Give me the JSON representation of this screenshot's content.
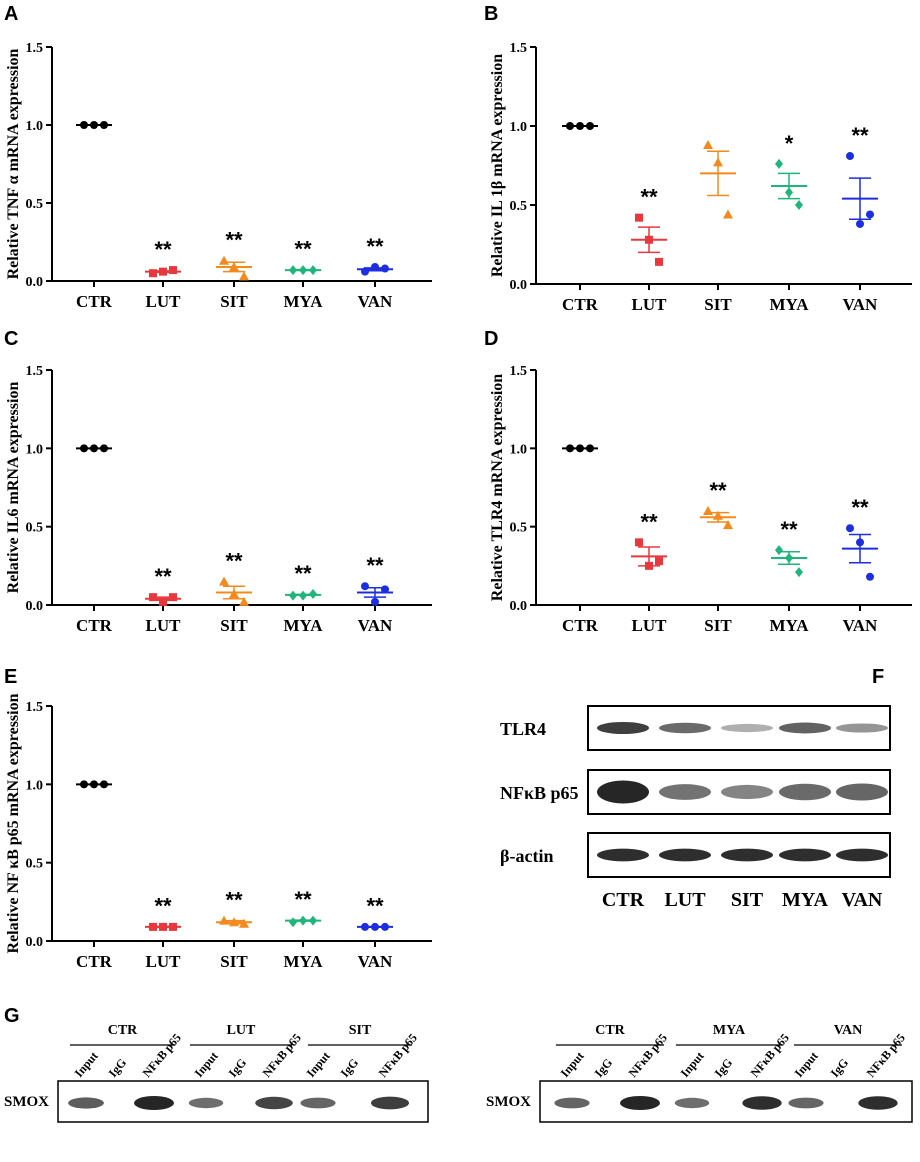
{
  "figure": {
    "panel_letters": [
      "A",
      "B",
      "C",
      "D",
      "E",
      "F",
      "G"
    ]
  },
  "chart_data": [
    {
      "panel": "A",
      "type": "scatter",
      "ylabel": "Relative TNF α mRNA expression",
      "categories": [
        "CTR",
        "LUT",
        "SIT",
        "MYA",
        "VAN"
      ],
      "yticks": [
        "0.0",
        "0.5",
        "1.0",
        "1.5"
      ],
      "ylim": [
        0,
        1.5
      ],
      "series": [
        {
          "name": "CTR",
          "color": "#000000",
          "marker": "circle",
          "points": [
            1.0,
            1.0,
            1.0
          ],
          "mean": 1.0,
          "sem": 0,
          "sig": ""
        },
        {
          "name": "LUT",
          "color": "#e8383d",
          "marker": "square",
          "points": [
            0.05,
            0.06,
            0.07
          ],
          "mean": 0.06,
          "sem": 0.005,
          "sig": "**"
        },
        {
          "name": "SIT",
          "color": "#f28a1e",
          "marker": "triangle",
          "points": [
            0.13,
            0.09,
            0.03
          ],
          "mean": 0.09,
          "sem": 0.03,
          "sig": "**"
        },
        {
          "name": "MYA",
          "color": "#1fb57b",
          "marker": "diamond",
          "points": [
            0.07,
            0.07,
            0.07
          ],
          "mean": 0.07,
          "sem": 0.003,
          "sig": "**"
        },
        {
          "name": "VAN",
          "color": "#1c2ee0",
          "marker": "circle",
          "points": [
            0.06,
            0.09,
            0.08
          ],
          "mean": 0.075,
          "sem": 0.009,
          "sig": "**"
        }
      ]
    },
    {
      "panel": "B",
      "type": "scatter",
      "ylabel": "Relative IL 1β mRNA expression",
      "categories": [
        "CTR",
        "LUT",
        "SIT",
        "MYA",
        "VAN"
      ],
      "yticks": [
        "0.0",
        "0.5",
        "1.0",
        "1.5"
      ],
      "ylim": [
        0,
        1.5
      ],
      "series": [
        {
          "name": "CTR",
          "color": "#000000",
          "marker": "circle",
          "points": [
            1.0,
            1.0,
            1.0
          ],
          "mean": 1.0,
          "sem": 0,
          "sig": ""
        },
        {
          "name": "LUT",
          "color": "#e8383d",
          "marker": "square",
          "points": [
            0.42,
            0.28,
            0.14
          ],
          "mean": 0.28,
          "sem": 0.08,
          "sig": "**"
        },
        {
          "name": "SIT",
          "color": "#f28a1e",
          "marker": "triangle",
          "points": [
            0.88,
            0.77,
            0.44
          ],
          "mean": 0.7,
          "sem": 0.14,
          "sig": ""
        },
        {
          "name": "MYA",
          "color": "#1fb57b",
          "marker": "diamond",
          "points": [
            0.76,
            0.58,
            0.5
          ],
          "mean": 0.62,
          "sem": 0.08,
          "sig": "*"
        },
        {
          "name": "VAN",
          "color": "#1c2ee0",
          "marker": "circle",
          "points": [
            0.81,
            0.38,
            0.44
          ],
          "mean": 0.54,
          "sem": 0.13,
          "sig": "**"
        }
      ]
    },
    {
      "panel": "C",
      "type": "scatter",
      "ylabel": "Relative IL6 mRNA expression",
      "categories": [
        "CTR",
        "LUT",
        "SIT",
        "MYA",
        "VAN"
      ],
      "yticks": [
        "0.0",
        "0.5",
        "1.0",
        "1.5"
      ],
      "ylim": [
        0,
        1.5
      ],
      "series": [
        {
          "name": "CTR",
          "color": "#000000",
          "marker": "circle",
          "points": [
            1.0,
            1.0,
            1.0
          ],
          "mean": 1.0,
          "sem": 0,
          "sig": ""
        },
        {
          "name": "LUT",
          "color": "#e8383d",
          "marker": "square",
          "points": [
            0.05,
            0.02,
            0.05
          ],
          "mean": 0.04,
          "sem": 0.01,
          "sig": "**"
        },
        {
          "name": "SIT",
          "color": "#f28a1e",
          "marker": "triangle",
          "points": [
            0.15,
            0.07,
            0.02
          ],
          "mean": 0.08,
          "sem": 0.04,
          "sig": "**"
        },
        {
          "name": "MYA",
          "color": "#1fb57b",
          "marker": "diamond",
          "points": [
            0.06,
            0.06,
            0.07
          ],
          "mean": 0.065,
          "sem": 0.003,
          "sig": "**"
        },
        {
          "name": "VAN",
          "color": "#1c2ee0",
          "marker": "circle",
          "points": [
            0.12,
            0.02,
            0.1
          ],
          "mean": 0.08,
          "sem": 0.03,
          "sig": "**"
        }
      ]
    },
    {
      "panel": "D",
      "type": "scatter",
      "ylabel": "Relative TLR4 mRNA expression",
      "categories": [
        "CTR",
        "LUT",
        "SIT",
        "MYA",
        "VAN"
      ],
      "yticks": [
        "0.0",
        "0.5",
        "1.0",
        "1.5"
      ],
      "ylim": [
        0,
        1.5
      ],
      "series": [
        {
          "name": "CTR",
          "color": "#000000",
          "marker": "circle",
          "points": [
            1.0,
            1.0,
            1.0
          ],
          "mean": 1.0,
          "sem": 0,
          "sig": ""
        },
        {
          "name": "LUT",
          "color": "#e8383d",
          "marker": "square",
          "points": [
            0.4,
            0.25,
            0.28
          ],
          "mean": 0.31,
          "sem": 0.06,
          "sig": "**"
        },
        {
          "name": "SIT",
          "color": "#f28a1e",
          "marker": "triangle",
          "points": [
            0.6,
            0.57,
            0.51
          ],
          "mean": 0.56,
          "sem": 0.03,
          "sig": "**"
        },
        {
          "name": "MYA",
          "color": "#1fb57b",
          "marker": "diamond",
          "points": [
            0.35,
            0.3,
            0.21
          ],
          "mean": 0.3,
          "sem": 0.04,
          "sig": "**"
        },
        {
          "name": "VAN",
          "color": "#1c2ee0",
          "marker": "circle",
          "points": [
            0.49,
            0.4,
            0.18
          ],
          "mean": 0.36,
          "sem": 0.09,
          "sig": "**"
        }
      ]
    },
    {
      "panel": "E",
      "type": "scatter",
      "ylabel": "Relative NF κB p65 mRNA expression",
      "categories": [
        "CTR",
        "LUT",
        "SIT",
        "MYA",
        "VAN"
      ],
      "yticks": [
        "0.0",
        "0.5",
        "1.0",
        "1.5"
      ],
      "ylim": [
        0,
        1.5
      ],
      "series": [
        {
          "name": "CTR",
          "color": "#000000",
          "marker": "circle",
          "points": [
            1.0,
            1.0,
            1.0
          ],
          "mean": 1.0,
          "sem": 0,
          "sig": ""
        },
        {
          "name": "LUT",
          "color": "#e8383d",
          "marker": "square",
          "points": [
            0.09,
            0.09,
            0.09
          ],
          "mean": 0.09,
          "sem": 0.003,
          "sig": "**"
        },
        {
          "name": "SIT",
          "color": "#f28a1e",
          "marker": "triangle",
          "points": [
            0.13,
            0.12,
            0.11
          ],
          "mean": 0.12,
          "sem": 0.01,
          "sig": "**"
        },
        {
          "name": "MYA",
          "color": "#1fb57b",
          "marker": "diamond",
          "points": [
            0.12,
            0.13,
            0.13
          ],
          "mean": 0.13,
          "sem": 0.003,
          "sig": "**"
        },
        {
          "name": "VAN",
          "color": "#1c2ee0",
          "marker": "circle",
          "points": [
            0.09,
            0.09,
            0.09
          ],
          "mean": 0.09,
          "sem": 0.002,
          "sig": "**"
        }
      ]
    }
  ],
  "western_blot": {
    "panel": "F",
    "rows": [
      {
        "label": "TLR4",
        "intensities": [
          0.85,
          0.6,
          0.2,
          0.65,
          0.35
        ]
      },
      {
        "label": "NFκB p65",
        "intensities": [
          1.0,
          0.55,
          0.45,
          0.6,
          0.62
        ]
      },
      {
        "label": "β-actin",
        "intensities": [
          0.95,
          0.95,
          0.95,
          0.95,
          0.95
        ]
      }
    ],
    "lanes": [
      "CTR",
      "LUT",
      "SIT",
      "MYA",
      "VAN"
    ]
  },
  "co_ip": {
    "panel": "G",
    "row_label": "SMOX",
    "lane_labels": [
      "Input",
      "IgG",
      "NFκB p65"
    ],
    "left": {
      "groups": [
        "CTR",
        "LUT",
        "SIT"
      ],
      "intensities": [
        0.65,
        0.0,
        1.0,
        0.55,
        0.0,
        0.8,
        0.6,
        0.0,
        0.85
      ]
    },
    "right": {
      "groups": [
        "CTR",
        "MYA",
        "VAN"
      ],
      "intensities": [
        0.6,
        0.0,
        1.0,
        0.55,
        0.0,
        0.95,
        0.6,
        0.0,
        0.95
      ]
    }
  }
}
